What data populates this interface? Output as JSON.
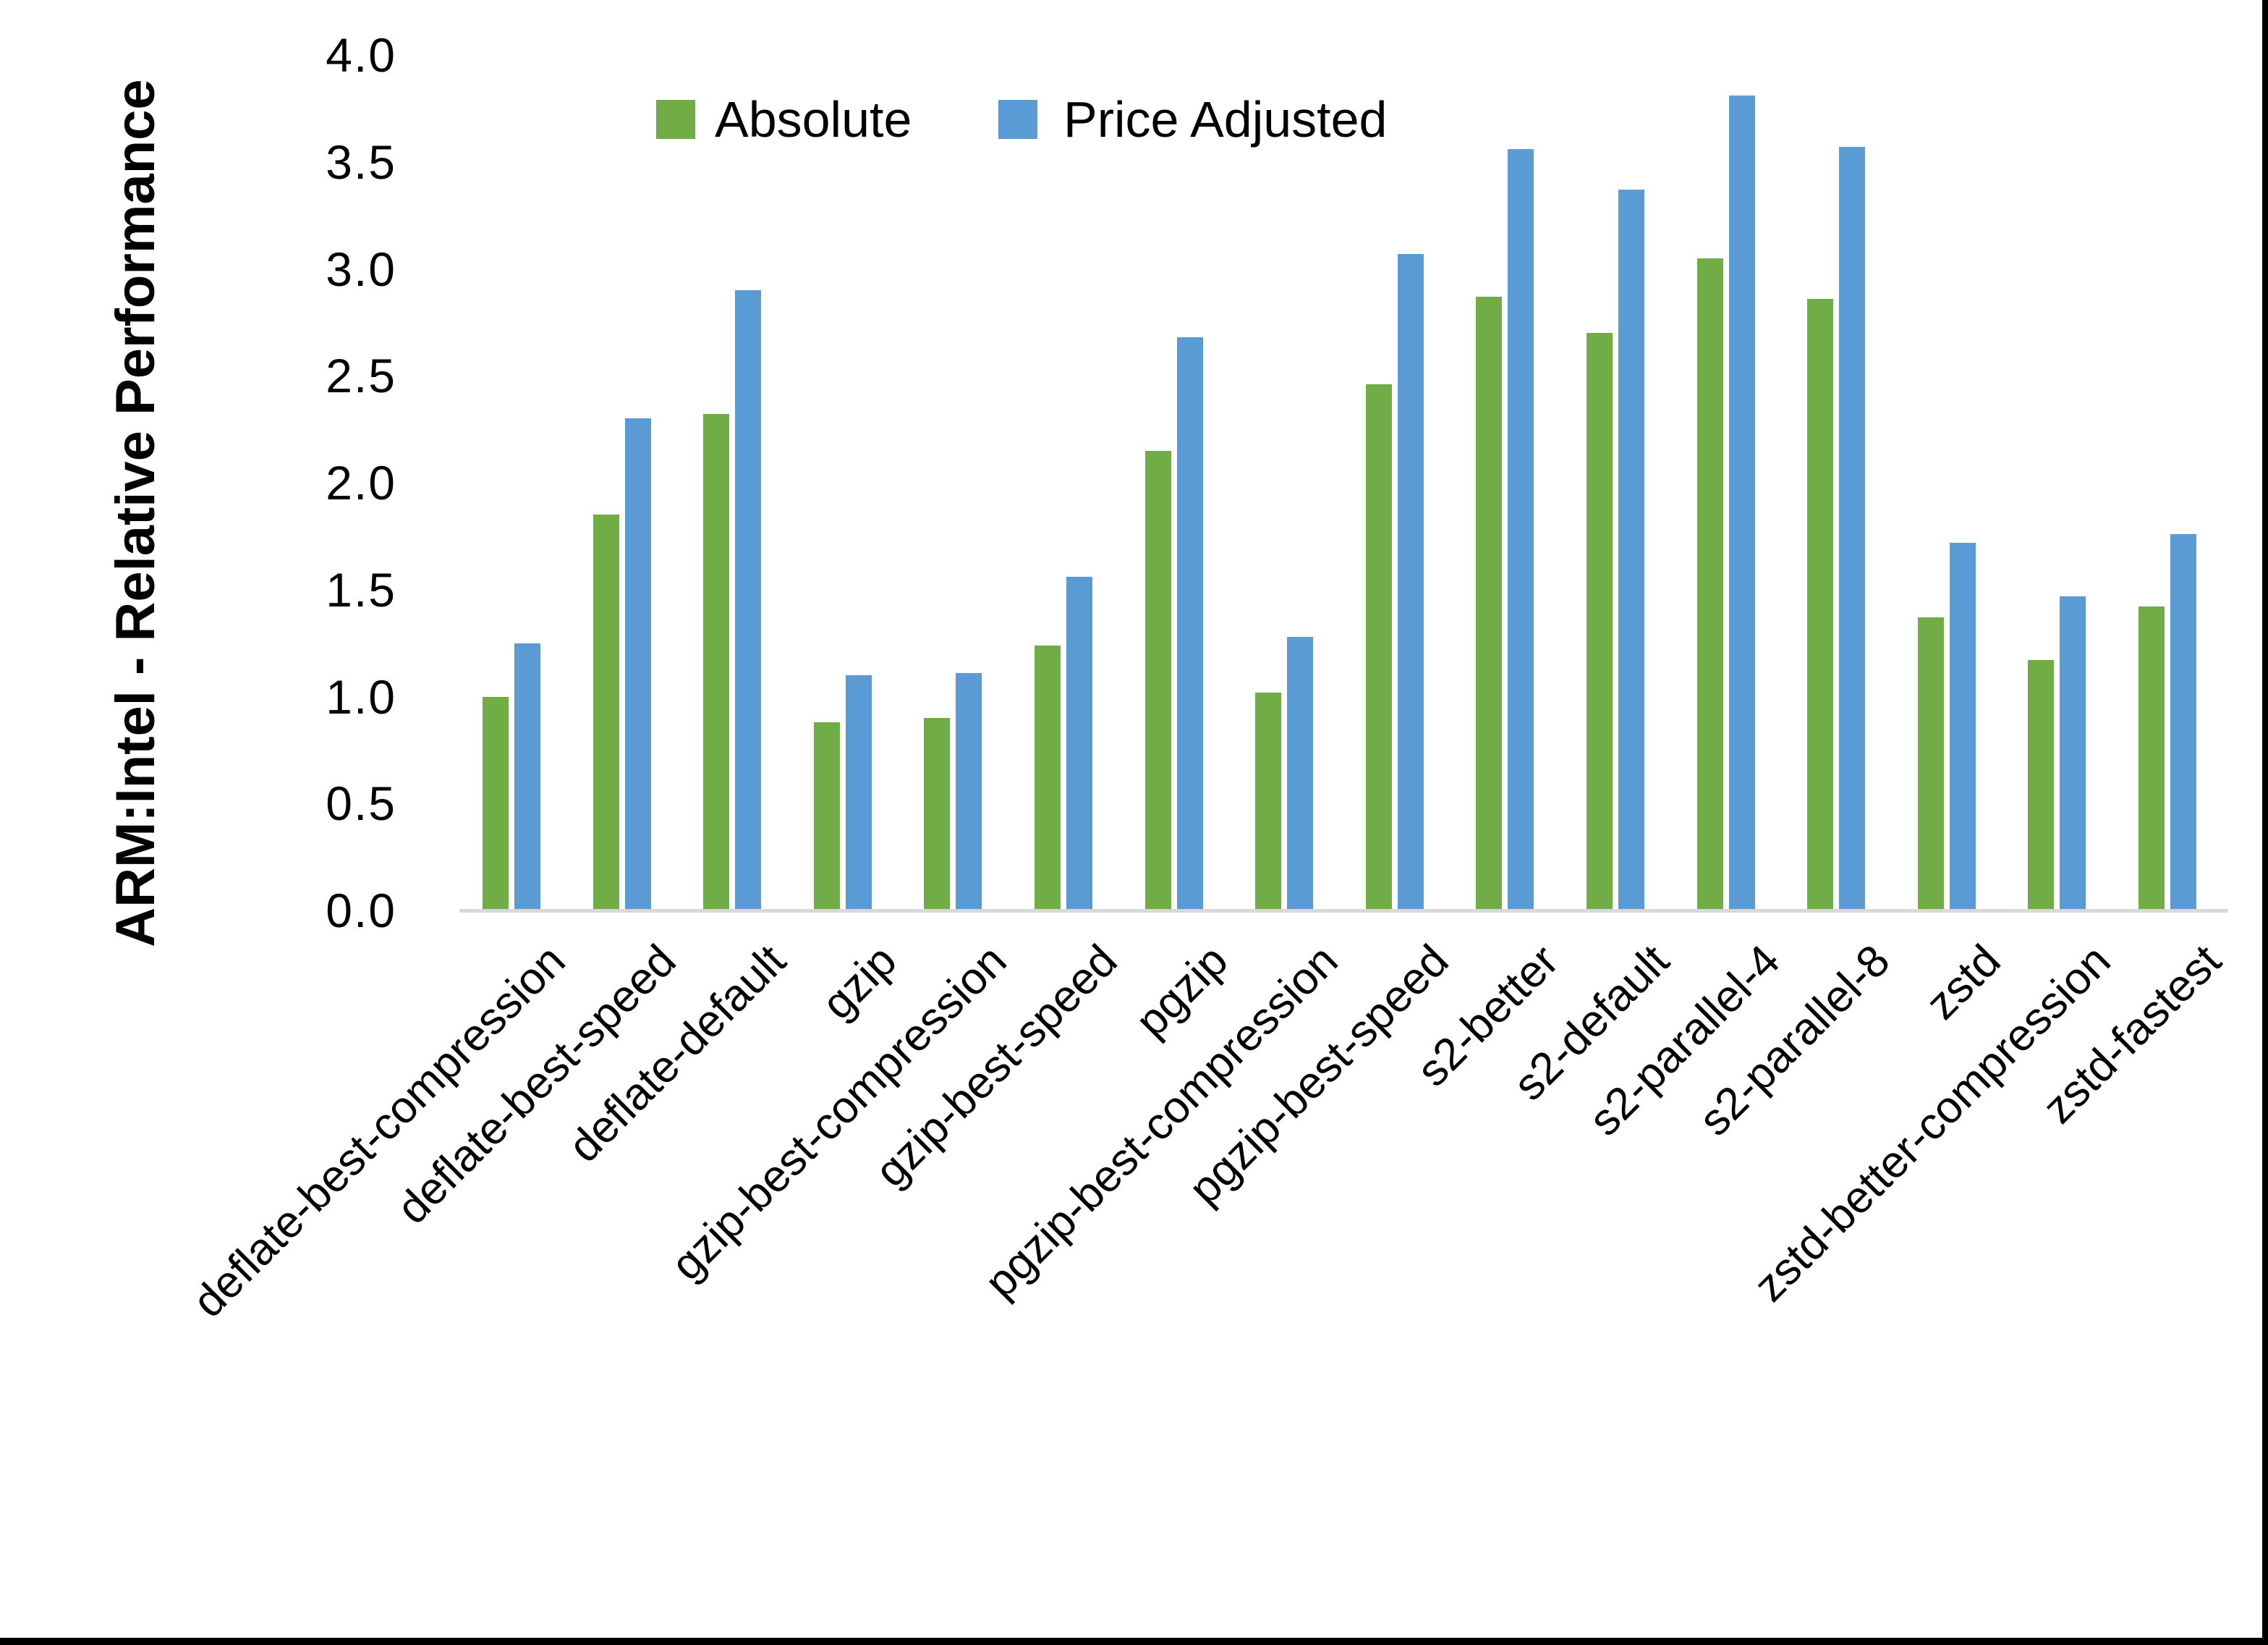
{
  "chart": {
    "y_axis_title": "ARM:Intel - Relative Performance",
    "legend": {
      "items": [
        {
          "label": "Absolute",
          "color": "#70AD47"
        },
        {
          "label": "Price Adjusted",
          "color": "#5B9BD5"
        }
      ]
    },
    "colors": {
      "absolute_green": "#70AD47",
      "price_adjusted_blue": "#5B9BD5",
      "axis_line_gray": "#D9D9D9",
      "border_black": "#000000"
    }
  },
  "chart_data": {
    "type": "bar",
    "title": "",
    "xlabel": "",
    "ylabel": "ARM:Intel - Relative Performance",
    "ylim": [
      0.0,
      4.0
    ],
    "y_tick_step": 0.5,
    "y_tick_labels": [
      "0.0",
      "0.5",
      "1.0",
      "1.5",
      "2.0",
      "2.5",
      "3.0",
      "3.5",
      "4.0"
    ],
    "grid": false,
    "legend_position": "top",
    "categories": [
      "deflate-best-compression",
      "deflate-best-speed",
      "deflate-default",
      "gzip",
      "gzip-best-compression",
      "gzip-best-speed",
      "pgzip",
      "pgzip-best-compression",
      "pgzip-best-speed",
      "s2-better",
      "s2-default",
      "s2-parallel-4",
      "s2-parallel-8",
      "zstd",
      "zstd-better-compression",
      "zstd-fastest"
    ],
    "series": [
      {
        "name": "Absolute",
        "color": "#70AD47",
        "values": [
          1.0,
          1.85,
          2.32,
          0.88,
          0.9,
          1.24,
          2.15,
          1.02,
          2.46,
          2.87,
          2.7,
          3.05,
          2.86,
          1.37,
          1.17,
          1.42
        ]
      },
      {
        "name": "Price Adjusted",
        "color": "#5B9BD5",
        "values": [
          1.25,
          2.3,
          2.9,
          1.1,
          1.11,
          1.56,
          2.68,
          1.28,
          3.07,
          3.56,
          3.37,
          3.81,
          3.57,
          1.72,
          1.47,
          1.76
        ]
      }
    ]
  }
}
